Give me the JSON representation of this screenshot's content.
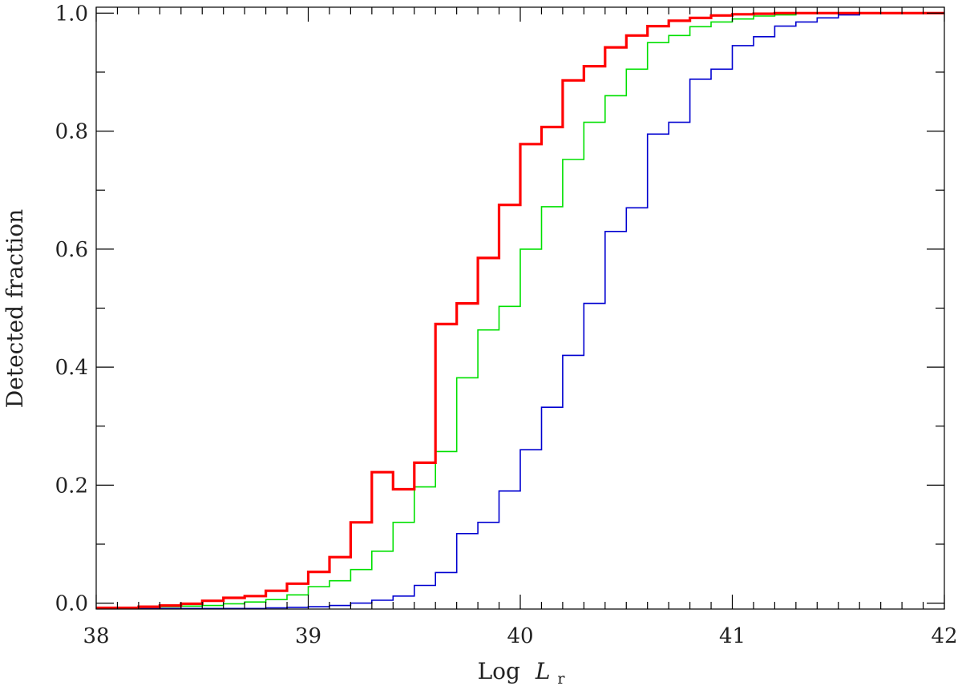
{
  "chart_data": {
    "type": "line",
    "style": "step",
    "title": "",
    "xlabel": {
      "prefix": "Log",
      "symbol": "L",
      "subscript": "r"
    },
    "ylabel": "Detected fraction",
    "xlim": [
      38,
      42
    ],
    "ylim": [
      -0.01,
      1.01
    ],
    "x_ticks": [
      38,
      39,
      40,
      41,
      42
    ],
    "x_tick_labels": [
      "38",
      "39",
      "40",
      "41",
      "42"
    ],
    "y_ticks": [
      0.0,
      0.2,
      0.4,
      0.6,
      0.8,
      1.0
    ],
    "y_tick_labels": [
      "0.0",
      "0.2",
      "0.4",
      "0.6",
      "0.8",
      "1.0"
    ],
    "grid": false,
    "legend": "none",
    "bin_edges": [
      38.0,
      38.1,
      38.2,
      38.3,
      38.4,
      38.5,
      38.6,
      38.7,
      38.8,
      38.9,
      39.0,
      39.1,
      39.2,
      39.3,
      39.4,
      39.5,
      39.6,
      39.7,
      39.8,
      39.9,
      40.0,
      40.1,
      40.2,
      40.3,
      40.4,
      40.5,
      40.6,
      40.7,
      40.8,
      40.9,
      41.0,
      41.1,
      41.2,
      41.3,
      41.4,
      41.5,
      41.6,
      41.7,
      41.8,
      41.9,
      42.0
    ],
    "series": [
      {
        "color": "#ff0000",
        "width": 3.2,
        "values": [
          -0.008,
          -0.008,
          -0.006,
          -0.004,
          -0.001,
          0.004,
          0.009,
          0.012,
          0.021,
          0.033,
          0.053,
          0.078,
          0.137,
          0.222,
          0.193,
          0.238,
          0.473,
          0.508,
          0.585,
          0.675,
          0.778,
          0.807,
          0.886,
          0.91,
          0.942,
          0.962,
          0.978,
          0.987,
          0.992,
          0.996,
          0.998,
          0.999,
          1.0,
          1.0,
          1.0,
          1.0,
          1.0,
          1.0,
          1.0,
          1.0
        ]
      },
      {
        "color": "#00e000",
        "width": 1.6,
        "values": [
          -0.008,
          -0.008,
          -0.007,
          -0.006,
          -0.005,
          -0.004,
          -0.001,
          0.002,
          0.006,
          0.014,
          0.028,
          0.038,
          0.057,
          0.088,
          0.137,
          0.197,
          0.257,
          0.382,
          0.463,
          0.503,
          0.6,
          0.672,
          0.752,
          0.815,
          0.86,
          0.905,
          0.95,
          0.962,
          0.977,
          0.985,
          0.99,
          0.995,
          0.997,
          0.999,
          1.0,
          1.0,
          1.0,
          1.0,
          1.0,
          1.0
        ]
      },
      {
        "color": "#0000d0",
        "width": 1.6,
        "values": [
          -0.009,
          -0.009,
          -0.009,
          -0.009,
          -0.009,
          -0.009,
          -0.009,
          -0.009,
          -0.008,
          -0.007,
          -0.006,
          -0.004,
          0.0,
          0.005,
          0.012,
          0.03,
          0.052,
          0.118,
          0.137,
          0.19,
          0.26,
          0.332,
          0.42,
          0.508,
          0.63,
          0.67,
          0.795,
          0.815,
          0.888,
          0.905,
          0.945,
          0.96,
          0.978,
          0.985,
          0.992,
          0.997,
          0.999,
          1.0,
          1.0,
          1.0
        ]
      }
    ]
  }
}
